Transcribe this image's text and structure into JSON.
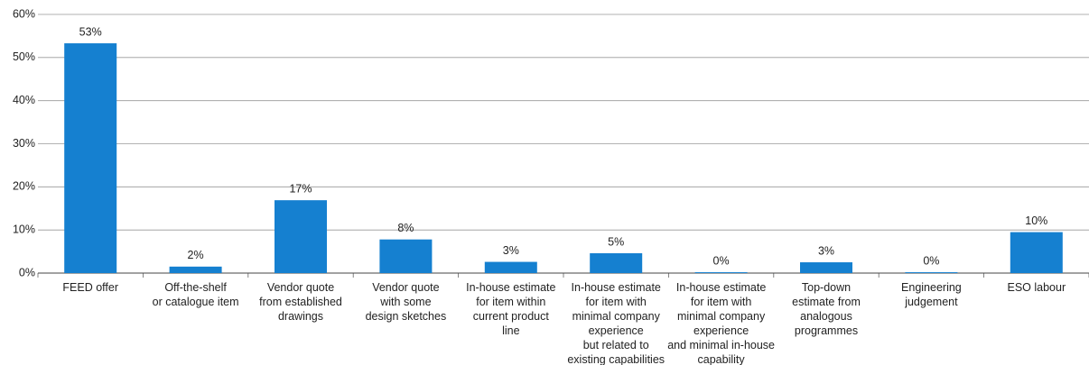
{
  "chart_data": {
    "type": "bar",
    "categories": [
      [
        "FEED offer"
      ],
      [
        "Off-the-shelf",
        "or catalogue item"
      ],
      [
        "Vendor quote",
        "from established",
        "drawings"
      ],
      [
        "Vendor quote",
        "with some",
        "design sketches"
      ],
      [
        "In-house estimate",
        "for item within",
        "current product",
        "line"
      ],
      [
        "In-house estimate",
        "for item with",
        "minimal company",
        "experience",
        "but related to",
        "existing capabilities"
      ],
      [
        "In-house estimate",
        "for item with",
        "minimal company",
        "experience",
        "and minimal in-house",
        "capability"
      ],
      [
        "Top-down",
        "estimate from",
        "analogous",
        "programmes"
      ],
      [
        "Engineering",
        "judgement"
      ],
      [
        "ESO labour"
      ]
    ],
    "values": [
      53.3,
      1.5,
      16.9,
      7.8,
      2.6,
      4.6,
      0.2,
      2.5,
      0.2,
      9.5
    ],
    "value_labels": [
      "53%",
      "2%",
      "17%",
      "8%",
      "3%",
      "5%",
      "0%",
      "3%",
      "0%",
      "10%"
    ],
    "color": "#1580d0",
    "ylim": [
      0,
      60
    ],
    "yticks": [
      {
        "value": 0,
        "label": "0%"
      },
      {
        "value": 10,
        "label": "10%"
      },
      {
        "value": 20,
        "label": "20%"
      },
      {
        "value": 30,
        "label": "30%"
      },
      {
        "value": 40,
        "label": "40%"
      },
      {
        "value": 50,
        "label": "50%"
      },
      {
        "value": 60,
        "label": "60%"
      }
    ],
    "grid": true
  }
}
